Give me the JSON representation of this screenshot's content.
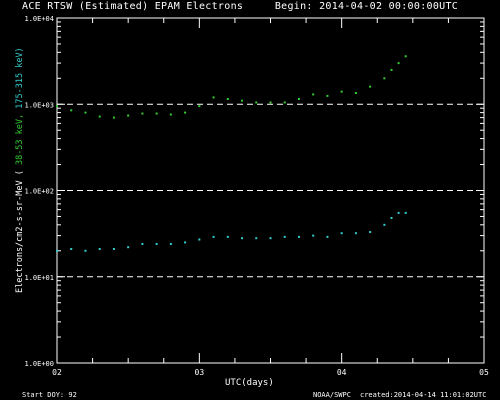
{
  "header": {
    "title": "ACE RTSW (Estimated) EPAM Electrons",
    "begin": "Begin: 2014-04-02 00:00:00UTC"
  },
  "footer": {
    "start_doy": "Start DOY:   92",
    "credit": "NOAA/SWPC",
    "created": "created:2014-04-14  11:01:02UTC"
  },
  "colors": {
    "background": "#000000",
    "axes": "#ffffff",
    "high_energy": "#33cc33",
    "low_energy": "#33cccc",
    "reference_lines": "#ffffff"
  },
  "chart_data": {
    "type": "scatter",
    "title": "ACE RTSW (Estimated) EPAM Electrons",
    "xlabel": "UTC(days)",
    "ylabel": {
      "prefix": "Electrons/cm2-s-sr-MeV  (",
      "green": "38-53 keV,",
      "cyan": "175-315 keV)"
    },
    "x_ticks": [
      "02",
      "03",
      "04",
      "05"
    ],
    "xlim": [
      0,
      3
    ],
    "y_scale": "log",
    "ylim": [
      1,
      10000
    ],
    "y_ticks": [
      "1.0E+00",
      "1.0E+01",
      "1.0E+02",
      "1.0E+03",
      "1.0E+04"
    ],
    "reference_lines": [
      1000,
      100,
      10
    ],
    "grid": false,
    "series": [
      {
        "name": "38-53 keV",
        "color": "#33cc33",
        "x": [
          0.0,
          0.1,
          0.2,
          0.3,
          0.4,
          0.5,
          0.6,
          0.7,
          0.8,
          0.9,
          1.0,
          1.1,
          1.2,
          1.3,
          1.4,
          1.5,
          1.6,
          1.7,
          1.8,
          1.9,
          2.0,
          2.1,
          2.2,
          2.3,
          2.35,
          2.4,
          2.45
        ],
        "y": [
          950,
          850,
          800,
          720,
          700,
          740,
          780,
          780,
          760,
          800,
          950,
          1200,
          1150,
          1100,
          1050,
          1050,
          1050,
          1150,
          1300,
          1250,
          1400,
          1350,
          1600,
          2000,
          2500,
          3000,
          3600
        ]
      },
      {
        "name": "175-315 keV",
        "color": "#33cccc",
        "x": [
          0.0,
          0.1,
          0.2,
          0.3,
          0.4,
          0.5,
          0.6,
          0.7,
          0.8,
          0.9,
          1.0,
          1.1,
          1.2,
          1.3,
          1.4,
          1.5,
          1.6,
          1.7,
          1.8,
          1.9,
          2.0,
          2.1,
          2.2,
          2.3,
          2.35,
          2.4,
          2.45
        ],
        "y": [
          20,
          21,
          20,
          21,
          21,
          22,
          24,
          24,
          24,
          25,
          27,
          29,
          29,
          28,
          28,
          28,
          29,
          29,
          30,
          29,
          32,
          32,
          33,
          40,
          48,
          55,
          55
        ]
      }
    ]
  }
}
